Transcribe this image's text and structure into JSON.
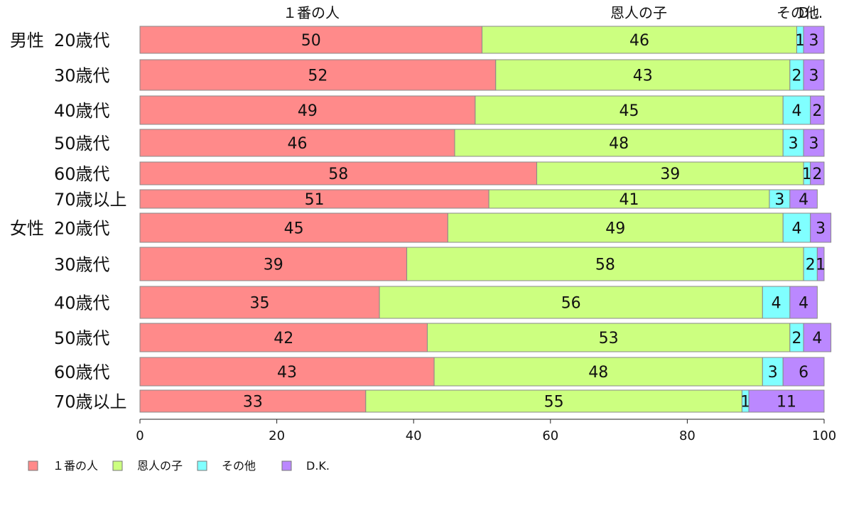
{
  "chart_data": {
    "type": "bar",
    "orientation": "horizontal",
    "stacked": true,
    "groups": [
      {
        "label": "男性",
        "categories": [
          "20歳代",
          "30歳代",
          "40歳代",
          "50歳代",
          "60歳代",
          "70歳以上"
        ]
      },
      {
        "label": "女性",
        "categories": [
          "20歳代",
          "30歳代",
          "40歳代",
          "50歳代",
          "60歳代",
          "70歳以上"
        ]
      }
    ],
    "series": [
      {
        "name": "１番の人",
        "color": "#ff8a8a",
        "values": [
          50,
          52,
          49,
          46,
          58,
          51,
          45,
          39,
          35,
          42,
          43,
          33
        ],
        "labels": [
          "50",
          "52",
          "49",
          "46",
          "58",
          "51",
          "45",
          "39",
          "35",
          "42",
          "43",
          "33"
        ]
      },
      {
        "name": "恩人の子",
        "color": "#ccff80",
        "values": [
          46,
          43,
          45,
          48,
          39,
          41,
          49,
          58,
          56,
          53,
          48,
          55
        ],
        "labels": [
          "46",
          "43",
          "45",
          "48",
          "39",
          "41",
          "49",
          "58",
          "56",
          "53",
          "48",
          "55"
        ]
      },
      {
        "name": "その他",
        "color": "#80ffff",
        "values": [
          1,
          2,
          4,
          3,
          1,
          3,
          4,
          2,
          4,
          2,
          3,
          1
        ],
        "labels": [
          "1",
          "2",
          "4",
          "3",
          "1",
          "3",
          "4",
          "2",
          "4",
          "2",
          "3",
          "1"
        ]
      },
      {
        "name": "D.K.",
        "color": "#bb88ff",
        "values": [
          3,
          3,
          2,
          3,
          2,
          4,
          3,
          1,
          4,
          4,
          6,
          11
        ],
        "labels": [
          "3",
          "3",
          "2",
          "3",
          "2",
          "4",
          "3",
          "1",
          "4",
          "4",
          "6",
          "11"
        ]
      }
    ],
    "top_labels": [
      "１番の人",
      "恩人の子",
      "その他",
      "D..."
    ],
    "x_ticks": [
      "0",
      "20",
      "40",
      "60",
      "80",
      "100"
    ],
    "xlim": [
      0,
      100
    ],
    "grid": false,
    "legend": "bottom-left"
  }
}
